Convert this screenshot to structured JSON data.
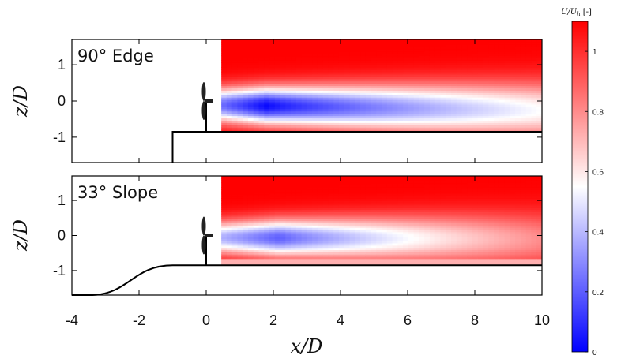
{
  "chart_data": {
    "type": "heatmap",
    "colorbar": {
      "title": "U/U",
      "title_sub": "h",
      "title_unit": "[-]",
      "ticks": [
        "1",
        "0.8",
        "0.6",
        "0.4",
        "0.2",
        "0"
      ],
      "tick_values": [
        1,
        0.8,
        0.6,
        0.4,
        0.2,
        0
      ],
      "range": [
        0,
        1.1
      ],
      "colors": {
        "low": "#0000ff",
        "mid": "#ffffff",
        "high": "#ff0000"
      }
    },
    "xlabel": "x/D",
    "xlim": [
      -4,
      10
    ],
    "x_ticks": [
      "-4",
      "-2",
      "0",
      "2",
      "4",
      "6",
      "8",
      "10"
    ],
    "x_tick_values": [
      -4,
      -2,
      0,
      2,
      4,
      6,
      8,
      10
    ],
    "panels": [
      {
        "label": "90° Edge",
        "ylabel": "z/D",
        "ylim": [
          -1.7,
          1.7
        ],
        "y_ticks": [
          "1",
          "0",
          "-1"
        ],
        "y_tick_values": [
          1,
          0,
          -1
        ],
        "terrain": "edge",
        "terrain_top": -0.85,
        "edge_x": -1,
        "field_extent": {
          "x": [
            0.45,
            10
          ],
          "z": [
            -0.85,
            1.7
          ]
        },
        "wake": {
          "center_z_start": -0.1,
          "center_z_end": -0.25,
          "min_velocity": 0.02,
          "min_at_x": 1.8,
          "recovery_velocity_at_10": 0.55,
          "free_stream": 1.1
        },
        "turbine_x": 0
      },
      {
        "label": "33° Slope",
        "ylabel": "z/D",
        "ylim": [
          -1.7,
          1.7
        ],
        "y_ticks": [
          "1",
          "0",
          "-1"
        ],
        "y_tick_values": [
          1,
          0,
          -1
        ],
        "terrain": "slope",
        "terrain_top": -0.85,
        "slope_from_x": -3.1,
        "slope_to_x": -1,
        "field_extent": {
          "x": [
            0.45,
            10
          ],
          "z": [
            -0.85,
            1.7
          ]
        },
        "wake": {
          "center_z_start": -0.05,
          "center_z_end": -0.1,
          "min_velocity": 0.2,
          "min_at_x": 2.2,
          "recovery_velocity_at_10": 0.8,
          "free_stream": 1.1
        },
        "turbine_x": 0
      }
    ]
  }
}
